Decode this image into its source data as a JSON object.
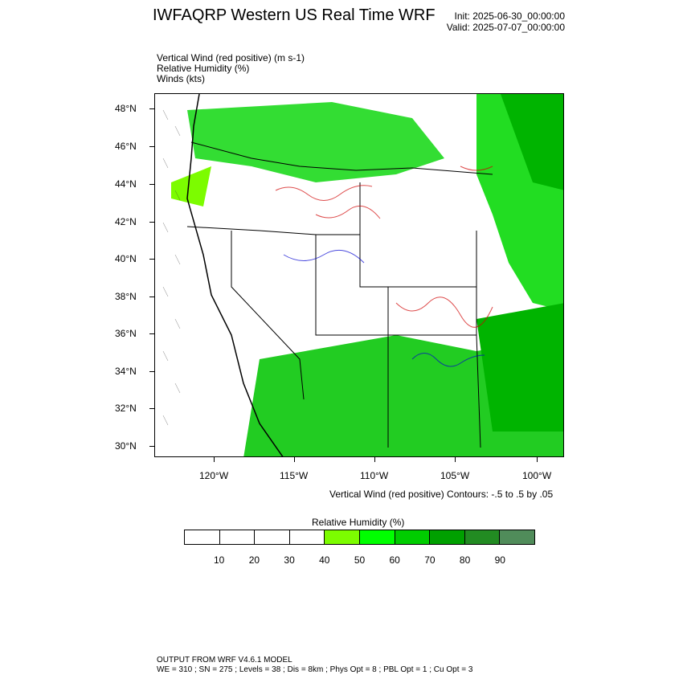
{
  "header": {
    "title": "IWFAQRP Western US Real Time WRF",
    "init": "Init: 2025-06-30_00:00:00",
    "valid": "Valid: 2025-07-07_00:00:00"
  },
  "fields": {
    "vertical_wind": "Vertical Wind (red positive)   (m s-1)",
    "relative_humidity": "Relative Humidity   (%)",
    "winds": "Winds   (kts)"
  },
  "map": {
    "lat_labels": [
      "48°N",
      "46°N",
      "44°N",
      "42°N",
      "40°N",
      "38°N",
      "36°N",
      "34°N",
      "32°N",
      "30°N"
    ],
    "lon_labels": [
      "120°W",
      "115°W",
      "110°W",
      "105°W",
      "100°W"
    ],
    "contour_note": "Vertical Wind (red positive) Contours: -.5 to .5 by .05"
  },
  "colorbar": {
    "title": "Relative Humidity   (%)",
    "labels": [
      "10",
      "20",
      "30",
      "40",
      "50",
      "60",
      "70",
      "80",
      "90"
    ],
    "colors": [
      "#ffffff",
      "#ffffff",
      "#ffffff",
      "#ffffff",
      "#7cfc00",
      "#00ff00",
      "#00cd00",
      "#00b400",
      "#008b00",
      "#228b22",
      "#508c5a"
    ]
  },
  "footer": {
    "line1": "OUTPUT FROM WRF V4.6.1 MODEL",
    "line2": "WE = 310 ; SN = 275 ; Levels = 38 ; Dis = 8km ; Phys Opt = 8 ; PBL Opt = 1 ; Cu Opt = 3"
  }
}
